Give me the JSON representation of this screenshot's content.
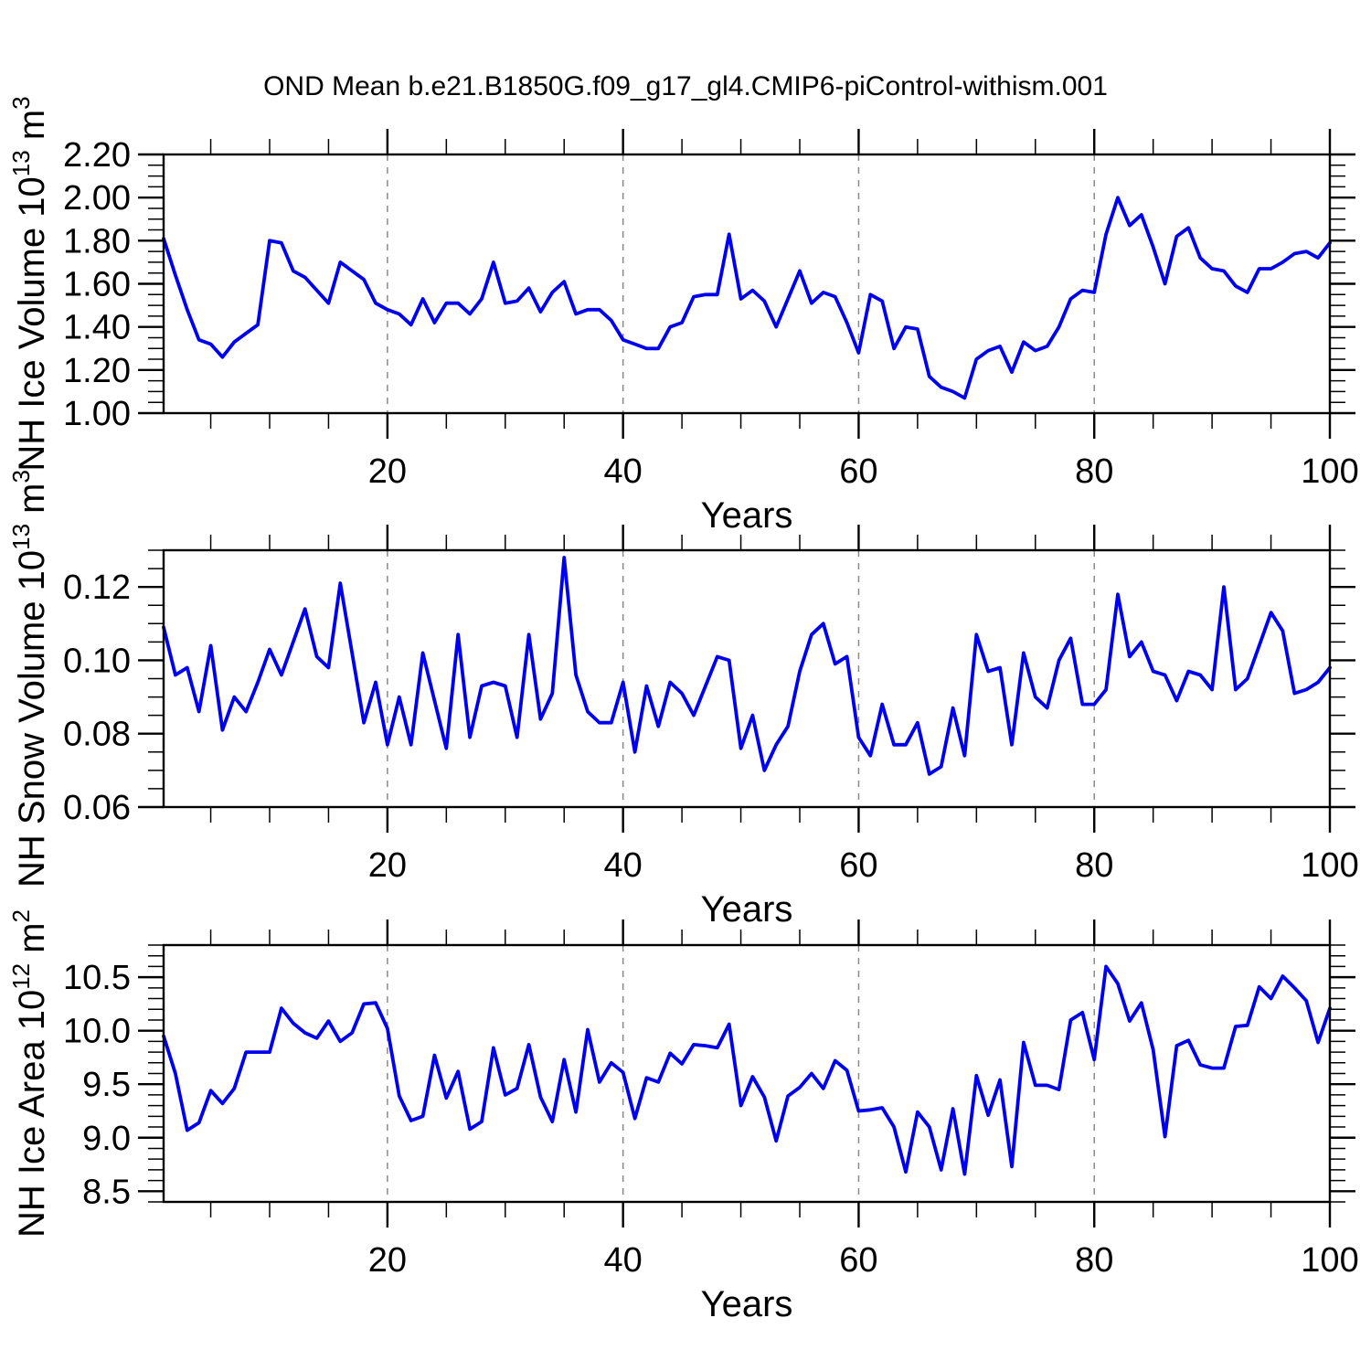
{
  "page_title": "OND Mean b.e21.B1850G.f09_g17_gl4.CMIP6-piControl-withism.001",
  "colors": {
    "line": "#0000f0",
    "axis": "#000000",
    "gridline": "#8a8a8a",
    "background": "#ffffff"
  },
  "chart_data": [
    {
      "type": "line",
      "panel": "NH Ice Volume",
      "xlabel": "Years",
      "ylabel": "NH Ice Volume 10^13 m^3",
      "ylabel_parts": [
        {
          "t": "NH Ice Volume 10"
        },
        {
          "t": "13",
          "sup": true
        },
        {
          "t": " m"
        },
        {
          "t": "3",
          "sup": true
        }
      ],
      "x": {
        "start": 1,
        "end": 100,
        "step": 1
      },
      "xlim": [
        1,
        100
      ],
      "ylim": [
        1.0,
        2.2
      ],
      "xticks": [
        20,
        40,
        60,
        80,
        100
      ],
      "xtick_labels": [
        "20",
        "40",
        "60",
        "80",
        "100"
      ],
      "x_minor": [
        5,
        10,
        15,
        25,
        30,
        35,
        45,
        50,
        55,
        65,
        70,
        75,
        85,
        90,
        95
      ],
      "yticks": [
        1.0,
        1.2,
        1.4,
        1.6,
        1.8,
        2.0,
        2.2
      ],
      "ytick_labels": [
        "1.00",
        "1.20",
        "1.40",
        "1.60",
        "1.80",
        "2.00",
        "2.20"
      ],
      "y_minor": [
        1.05,
        1.1,
        1.15,
        1.25,
        1.3,
        1.35,
        1.45,
        1.5,
        1.55,
        1.65,
        1.7,
        1.75,
        1.85,
        1.9,
        1.95,
        2.05,
        2.1,
        2.15
      ],
      "gridlines_x": [
        20,
        40,
        60,
        80
      ],
      "grid": "vertical-dashed",
      "legend": "none",
      "values": [
        1.81,
        1.64,
        1.48,
        1.34,
        1.32,
        1.26,
        1.33,
        1.37,
        1.41,
        1.8,
        1.79,
        1.66,
        1.63,
        1.57,
        1.51,
        1.7,
        1.66,
        1.62,
        1.51,
        1.48,
        1.46,
        1.41,
        1.53,
        1.42,
        1.51,
        1.51,
        1.46,
        1.53,
        1.7,
        1.51,
        1.52,
        1.58,
        1.47,
        1.56,
        1.61,
        1.46,
        1.48,
        1.48,
        1.43,
        1.34,
        1.32,
        1.3,
        1.3,
        1.4,
        1.42,
        1.54,
        1.55,
        1.55,
        1.83,
        1.53,
        1.57,
        1.52,
        1.4,
        1.53,
        1.66,
        1.51,
        1.56,
        1.54,
        1.42,
        1.28,
        1.55,
        1.52,
        1.3,
        1.4,
        1.39,
        1.17,
        1.12,
        1.1,
        1.07,
        1.25,
        1.29,
        1.31,
        1.19,
        1.33,
        1.29,
        1.31,
        1.4,
        1.53,
        1.57,
        1.56,
        1.83,
        2.0,
        1.87,
        1.92,
        1.77,
        1.6,
        1.82,
        1.86,
        1.72,
        1.67,
        1.66,
        1.59,
        1.56,
        1.67,
        1.67,
        1.7,
        1.74,
        1.75,
        1.72,
        1.79
      ]
    },
    {
      "type": "line",
      "panel": "NH Snow Volume",
      "xlabel": "Years",
      "ylabel": "NH Snow Volume 10^13 m^3",
      "ylabel_parts": [
        {
          "t": "NH Snow Volume 10"
        },
        {
          "t": "13",
          "sup": true
        },
        {
          "t": " m"
        },
        {
          "t": "3",
          "sup": true
        }
      ],
      "x": {
        "start": 1,
        "end": 100,
        "step": 1
      },
      "xlim": [
        1,
        100
      ],
      "ylim": [
        0.06,
        0.13
      ],
      "xticks": [
        20,
        40,
        60,
        80,
        100
      ],
      "xtick_labels": [
        "20",
        "40",
        "60",
        "80",
        "100"
      ],
      "x_minor": [
        5,
        10,
        15,
        25,
        30,
        35,
        45,
        50,
        55,
        65,
        70,
        75,
        85,
        90,
        95
      ],
      "yticks": [
        0.06,
        0.08,
        0.1,
        0.12
      ],
      "ytick_labels": [
        "0.06",
        "0.08",
        "0.10",
        "0.12"
      ],
      "y_minor": [
        0.065,
        0.07,
        0.075,
        0.085,
        0.09,
        0.095,
        0.105,
        0.11,
        0.115,
        0.125,
        0.13
      ],
      "gridlines_x": [
        20,
        40,
        60,
        80
      ],
      "grid": "vertical-dashed",
      "legend": "none",
      "values": [
        0.109,
        0.096,
        0.098,
        0.086,
        0.104,
        0.081,
        0.09,
        0.086,
        0.094,
        0.103,
        0.096,
        0.105,
        0.114,
        0.101,
        0.098,
        0.121,
        0.102,
        0.083,
        0.094,
        0.077,
        0.09,
        0.077,
        0.102,
        0.089,
        0.076,
        0.107,
        0.079,
        0.093,
        0.094,
        0.093,
        0.079,
        0.107,
        0.084,
        0.091,
        0.128,
        0.096,
        0.086,
        0.083,
        0.083,
        0.094,
        0.075,
        0.093,
        0.082,
        0.094,
        0.091,
        0.085,
        0.093,
        0.101,
        0.1,
        0.076,
        0.085,
        0.07,
        0.077,
        0.082,
        0.097,
        0.107,
        0.11,
        0.099,
        0.101,
        0.079,
        0.074,
        0.088,
        0.077,
        0.077,
        0.083,
        0.069,
        0.071,
        0.087,
        0.074,
        0.107,
        0.097,
        0.098,
        0.077,
        0.102,
        0.09,
        0.087,
        0.1,
        0.106,
        0.088,
        0.088,
        0.092,
        0.118,
        0.101,
        0.105,
        0.097,
        0.096,
        0.089,
        0.097,
        0.096,
        0.092,
        0.12,
        0.092,
        0.095,
        0.104,
        0.113,
        0.108,
        0.091,
        0.092,
        0.094,
        0.098
      ]
    },
    {
      "type": "line",
      "panel": "NH Ice Area",
      "xlabel": "Years",
      "ylabel": "NH Ice Area 10^12 m^2",
      "ylabel_parts": [
        {
          "t": "NH Ice Area 10"
        },
        {
          "t": "12",
          "sup": true
        },
        {
          "t": " m"
        },
        {
          "t": "2",
          "sup": true
        }
      ],
      "x": {
        "start": 1,
        "end": 100,
        "step": 1
      },
      "xlim": [
        1,
        100
      ],
      "ylim": [
        8.4,
        10.8
      ],
      "xticks": [
        20,
        40,
        60,
        80,
        100
      ],
      "xtick_labels": [
        "20",
        "40",
        "60",
        "80",
        "100"
      ],
      "x_minor": [
        5,
        10,
        15,
        25,
        30,
        35,
        45,
        50,
        55,
        65,
        70,
        75,
        85,
        90,
        95
      ],
      "yticks": [
        8.5,
        9.0,
        9.5,
        10.0,
        10.5
      ],
      "ytick_labels": [
        "8.5",
        "9.0",
        "9.5",
        "10.0",
        "10.5"
      ],
      "y_minor": [
        8.4,
        8.6,
        8.7,
        8.8,
        8.9,
        9.1,
        9.2,
        9.3,
        9.4,
        9.6,
        9.7,
        9.8,
        9.9,
        10.1,
        10.2,
        10.3,
        10.4,
        10.6,
        10.7,
        10.8
      ],
      "gridlines_x": [
        20,
        40,
        60,
        80
      ],
      "grid": "vertical-dashed",
      "legend": "none",
      "values": [
        9.95,
        9.6,
        9.07,
        9.14,
        9.44,
        9.32,
        9.46,
        9.8,
        9.8,
        9.8,
        10.21,
        10.07,
        9.98,
        9.93,
        10.09,
        9.9,
        9.98,
        10.25,
        10.26,
        10.02,
        9.39,
        9.16,
        9.2,
        9.77,
        9.37,
        9.62,
        9.08,
        9.15,
        9.84,
        9.4,
        9.46,
        9.87,
        9.38,
        9.15,
        9.73,
        9.24,
        10.01,
        9.52,
        9.7,
        9.61,
        9.18,
        9.56,
        9.52,
        9.79,
        9.69,
        9.87,
        9.86,
        9.84,
        10.06,
        9.3,
        9.57,
        9.38,
        8.97,
        9.39,
        9.47,
        9.6,
        9.46,
        9.72,
        9.63,
        9.25,
        9.26,
        9.28,
        9.1,
        8.68,
        9.24,
        9.1,
        8.7,
        9.27,
        8.66,
        9.58,
        9.21,
        9.54,
        8.73,
        9.89,
        9.49,
        9.49,
        9.45,
        10.1,
        10.17,
        9.73,
        10.6,
        10.44,
        10.09,
        10.26,
        9.82,
        9.01,
        9.86,
        9.91,
        9.68,
        9.65,
        9.65,
        10.04,
        10.05,
        10.41,
        10.3,
        10.51,
        10.4,
        10.28,
        9.89,
        10.21
      ]
    }
  ]
}
